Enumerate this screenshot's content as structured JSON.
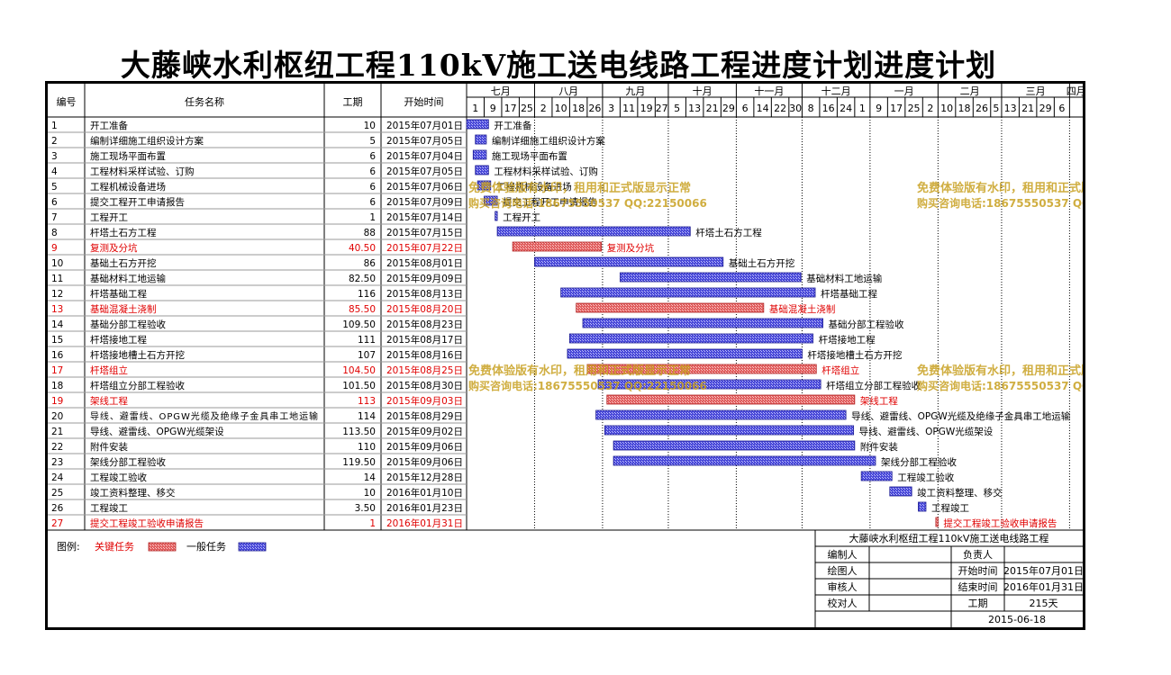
{
  "title": "大藤峡水利枢纽工程110kV施工送电线路工程进度计划进度计划",
  "header": {
    "col_id": "编号",
    "col_name": "任务名称",
    "col_duration": "工期",
    "col_start": "开始时间"
  },
  "timeline": {
    "months": [
      "七月",
      "八月",
      "九月",
      "十月",
      "十一月",
      "十二月",
      "一月",
      "二月",
      "三月",
      "四月"
    ],
    "days": [
      "1",
      "9",
      "17",
      "25",
      "2",
      "10",
      "18",
      "26",
      "3",
      "11",
      "19",
      "27",
      "5",
      "13",
      "21",
      "29",
      "6",
      "14",
      "22",
      "30",
      "8",
      "16",
      "24",
      "1",
      "9",
      "17",
      "25",
      "2",
      "10",
      "18",
      "26",
      "5",
      "13",
      "21",
      "29",
      "6"
    ]
  },
  "chart_data": {
    "type": "gantt",
    "title": "大藤峡水利枢纽工程110kV施工送电线路工程进度计划进度计划",
    "x_axis": {
      "type": "date",
      "range": [
        "2015-07-01",
        "2016-04-07"
      ],
      "months": [
        "七月",
        "八月",
        "九月",
        "十月",
        "十一月",
        "十二月",
        "一月",
        "二月",
        "三月",
        "四月"
      ]
    },
    "tasks": [
      {
        "id": "1",
        "name": "开工准备",
        "duration": "10",
        "start": "2015年07月01日",
        "start_date": "2015-07-01",
        "days": 10,
        "critical": false
      },
      {
        "id": "2",
        "name": "编制详细施工组织设计方案",
        "duration": "5",
        "start": "2015年07月05日",
        "start_date": "2015-07-05",
        "days": 5,
        "critical": false
      },
      {
        "id": "3",
        "name": "施工现场平面布置",
        "duration": "6",
        "start": "2015年07月04日",
        "start_date": "2015-07-04",
        "days": 6,
        "critical": false
      },
      {
        "id": "4",
        "name": "工程材料采样试验、订购",
        "duration": "6",
        "start": "2015年07月05日",
        "start_date": "2015-07-05",
        "days": 6,
        "critical": false
      },
      {
        "id": "5",
        "name": "工程机械设备进场",
        "duration": "6",
        "start": "2015年07月06日",
        "start_date": "2015-07-06",
        "days": 6,
        "critical": false
      },
      {
        "id": "6",
        "name": "提交工程开工申请报告",
        "duration": "6",
        "start": "2015年07月09日",
        "start_date": "2015-07-09",
        "days": 6,
        "critical": false
      },
      {
        "id": "7",
        "name": "工程开工",
        "duration": "1",
        "start": "2015年07月14日",
        "start_date": "2015-07-14",
        "days": 1,
        "critical": false
      },
      {
        "id": "8",
        "name": "杆塔土石方工程",
        "duration": "88",
        "start": "2015年07月15日",
        "start_date": "2015-07-15",
        "days": 88,
        "critical": false
      },
      {
        "id": "9",
        "name": "复测及分坑",
        "duration": "40.50",
        "start": "2015年07月22日",
        "start_date": "2015-07-22",
        "days": 40.5,
        "critical": true
      },
      {
        "id": "10",
        "name": "基础土石方开挖",
        "duration": "86",
        "start": "2015年08月01日",
        "start_date": "2015-08-01",
        "days": 86,
        "critical": false
      },
      {
        "id": "11",
        "name": "基础材料工地运输",
        "duration": "82.50",
        "start": "2015年09月09日",
        "start_date": "2015-09-09",
        "days": 82.5,
        "critical": false
      },
      {
        "id": "12",
        "name": "杆塔基础工程",
        "duration": "116",
        "start": "2015年08月13日",
        "start_date": "2015-08-13",
        "days": 116,
        "critical": false
      },
      {
        "id": "13",
        "name": "基础混凝土浇制",
        "duration": "85.50",
        "start": "2015年08月20日",
        "start_date": "2015-08-20",
        "days": 85.5,
        "critical": true
      },
      {
        "id": "14",
        "name": "基础分部工程验收",
        "duration": "109.50",
        "start": "2015年08月23日",
        "start_date": "2015-08-23",
        "days": 109.5,
        "critical": false
      },
      {
        "id": "15",
        "name": "杆塔接地工程",
        "duration": "111",
        "start": "2015年08月17日",
        "start_date": "2015-08-17",
        "days": 111,
        "critical": false
      },
      {
        "id": "16",
        "name": "杆塔接地槽土石方开挖",
        "duration": "107",
        "start": "2015年08月16日",
        "start_date": "2015-08-16",
        "days": 107,
        "critical": false
      },
      {
        "id": "17",
        "name": "杆塔组立",
        "duration": "104.50",
        "start": "2015年08月25日",
        "start_date": "2015-08-25",
        "days": 104.5,
        "critical": true
      },
      {
        "id": "18",
        "name": "杆塔组立分部工程验收",
        "duration": "101.50",
        "start": "2015年08月30日",
        "start_date": "2015-08-30",
        "days": 101.5,
        "critical": false
      },
      {
        "id": "19",
        "name": "架线工程",
        "duration": "113",
        "start": "2015年09月03日",
        "start_date": "2015-09-03",
        "days": 113,
        "critical": true
      },
      {
        "id": "20",
        "name": "导线、避雷线、OPGW光缆及绝缘子金具串工地运输",
        "duration": "114",
        "start": "2015年08月29日",
        "start_date": "2015-08-29",
        "days": 114,
        "critical": false
      },
      {
        "id": "21",
        "name": "导线、避雷线、OPGW光缆架设",
        "duration": "113.50",
        "start": "2015年09月02日",
        "start_date": "2015-09-02",
        "days": 113.5,
        "critical": false
      },
      {
        "id": "22",
        "name": "附件安装",
        "duration": "110",
        "start": "2015年09月06日",
        "start_date": "2015-09-06",
        "days": 110,
        "critical": false
      },
      {
        "id": "23",
        "name": "架线分部工程验收",
        "duration": "119.50",
        "start": "2015年09月06日",
        "start_date": "2015-09-06",
        "days": 119.5,
        "critical": false
      },
      {
        "id": "24",
        "name": "工程竣工验收",
        "duration": "14",
        "start": "2015年12月28日",
        "start_date": "2015-12-28",
        "days": 14,
        "critical": false
      },
      {
        "id": "25",
        "name": "竣工资料整理、移交",
        "duration": "10",
        "start": "2016年01月10日",
        "start_date": "2016-01-10",
        "days": 10,
        "critical": false
      },
      {
        "id": "26",
        "name": "工程竣工",
        "duration": "3.50",
        "start": "2016年01月23日",
        "start_date": "2016-01-23",
        "days": 3.5,
        "critical": false
      },
      {
        "id": "27",
        "name": "提交工程竣工验收申请报告",
        "duration": "1",
        "start": "2016年01月31日",
        "start_date": "2016-01-31",
        "days": 1,
        "critical": true
      }
    ]
  },
  "watermark": {
    "line1": "免费体验版有水印，租用和正式版显示正常",
    "line2": "购买咨询电话:18675550537 QQ:22150066"
  },
  "legend": {
    "label": "图例:",
    "critical": "关键任务",
    "normal": "一般任务"
  },
  "info": {
    "project": "大藤峡水利枢纽工程110kV施工送电线路工程",
    "editor_label": "编制人",
    "editor": "",
    "owner_label": "负责人",
    "owner": "",
    "drawer_label": "绘图人",
    "drawer": "",
    "start_label": "开始时间",
    "start": "2015年07月01日",
    "reviewer_label": "审核人",
    "reviewer": "",
    "end_label": "结束时间",
    "end": "2016年01月31日",
    "checker_label": "校对人",
    "checker": "",
    "duration_label": "工期",
    "duration": "215天",
    "date": "2015-06-18"
  },
  "colors": {
    "critical_fill": "#e06060",
    "critical_text": "#e00000",
    "normal_fill": "#4a4ad8",
    "watermark": "#c8a020"
  }
}
